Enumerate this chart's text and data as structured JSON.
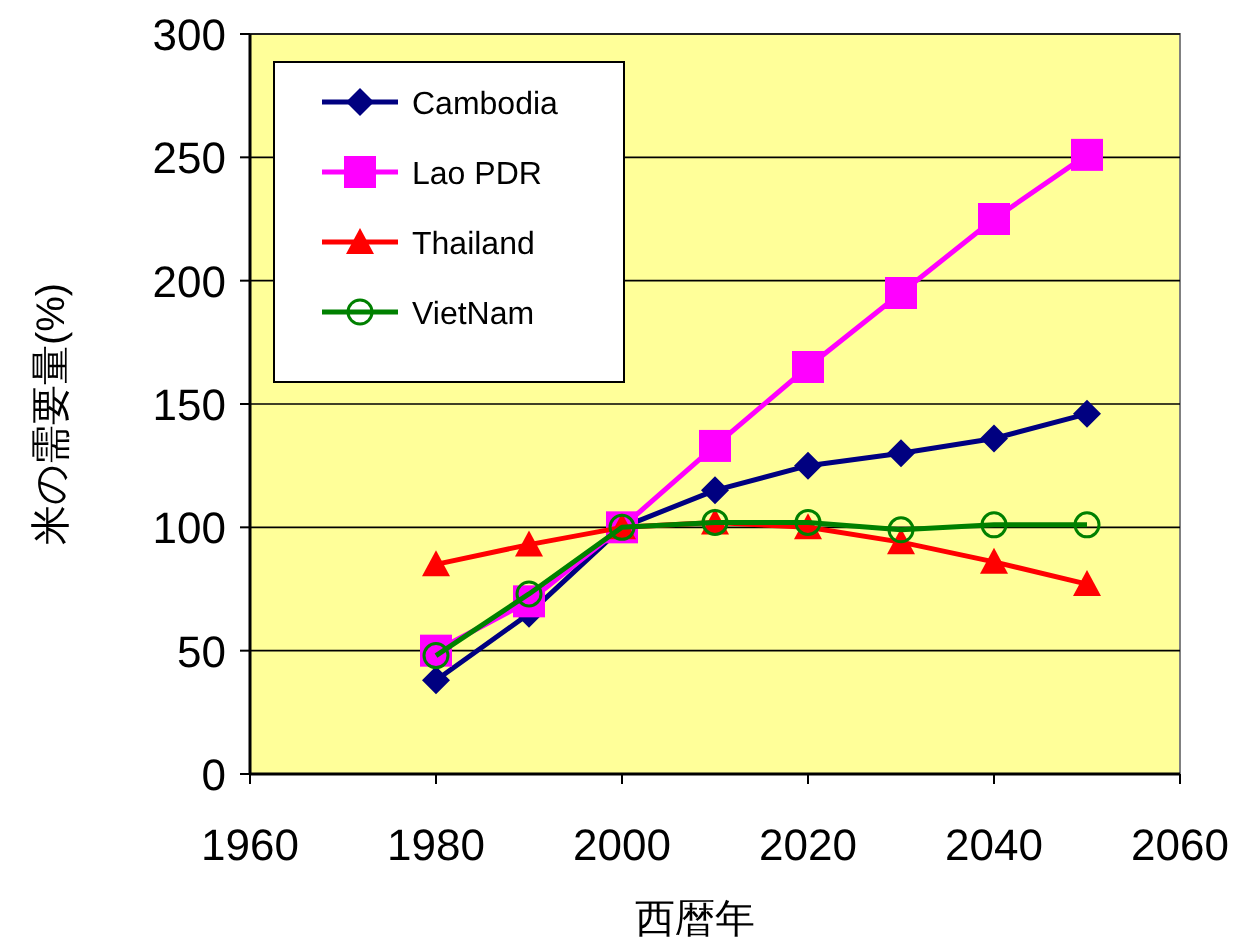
{
  "chart_data": {
    "type": "line",
    "xlabel": "西暦年",
    "ylabel": "米の需要量(%)",
    "xlim": [
      1960,
      2060
    ],
    "xticks": [
      1960,
      1980,
      2000,
      2020,
      2040,
      2060
    ],
    "ylim": [
      0,
      300
    ],
    "yticks": [
      0,
      50,
      100,
      150,
      200,
      250,
      300
    ],
    "grid": "y",
    "legend": "top left",
    "line_style": "solid",
    "series": [
      {
        "name": "Cambodia",
        "color": "#000080",
        "marker": "diamond",
        "x": [
          1980,
          1990,
          2000,
          2010,
          2020,
          2030,
          2040,
          2050
        ],
        "values": [
          38,
          65,
          100,
          115,
          125,
          130,
          136,
          146
        ]
      },
      {
        "name": "Lao PDR",
        "color": "#ff00ff",
        "marker": "square",
        "x": [
          1980,
          1990,
          2000,
          2010,
          2020,
          2030,
          2040,
          2050
        ],
        "values": [
          50,
          70,
          100,
          133,
          165,
          195,
          225,
          251
        ]
      },
      {
        "name": "Thailand",
        "color": "#ff0000",
        "marker": "triangle",
        "x": [
          1980,
          1990,
          2000,
          2010,
          2020,
          2030,
          2040,
          2050
        ],
        "values": [
          85,
          93,
          100,
          102,
          100,
          94,
          86,
          77
        ]
      },
      {
        "name": "VietNam",
        "color": "#008000",
        "marker": "circle",
        "x": [
          1980,
          1990,
          2000,
          2010,
          2020,
          2030,
          2040,
          2050
        ],
        "values": [
          48,
          73,
          100,
          102,
          102,
          99,
          101,
          101
        ]
      }
    ]
  }
}
